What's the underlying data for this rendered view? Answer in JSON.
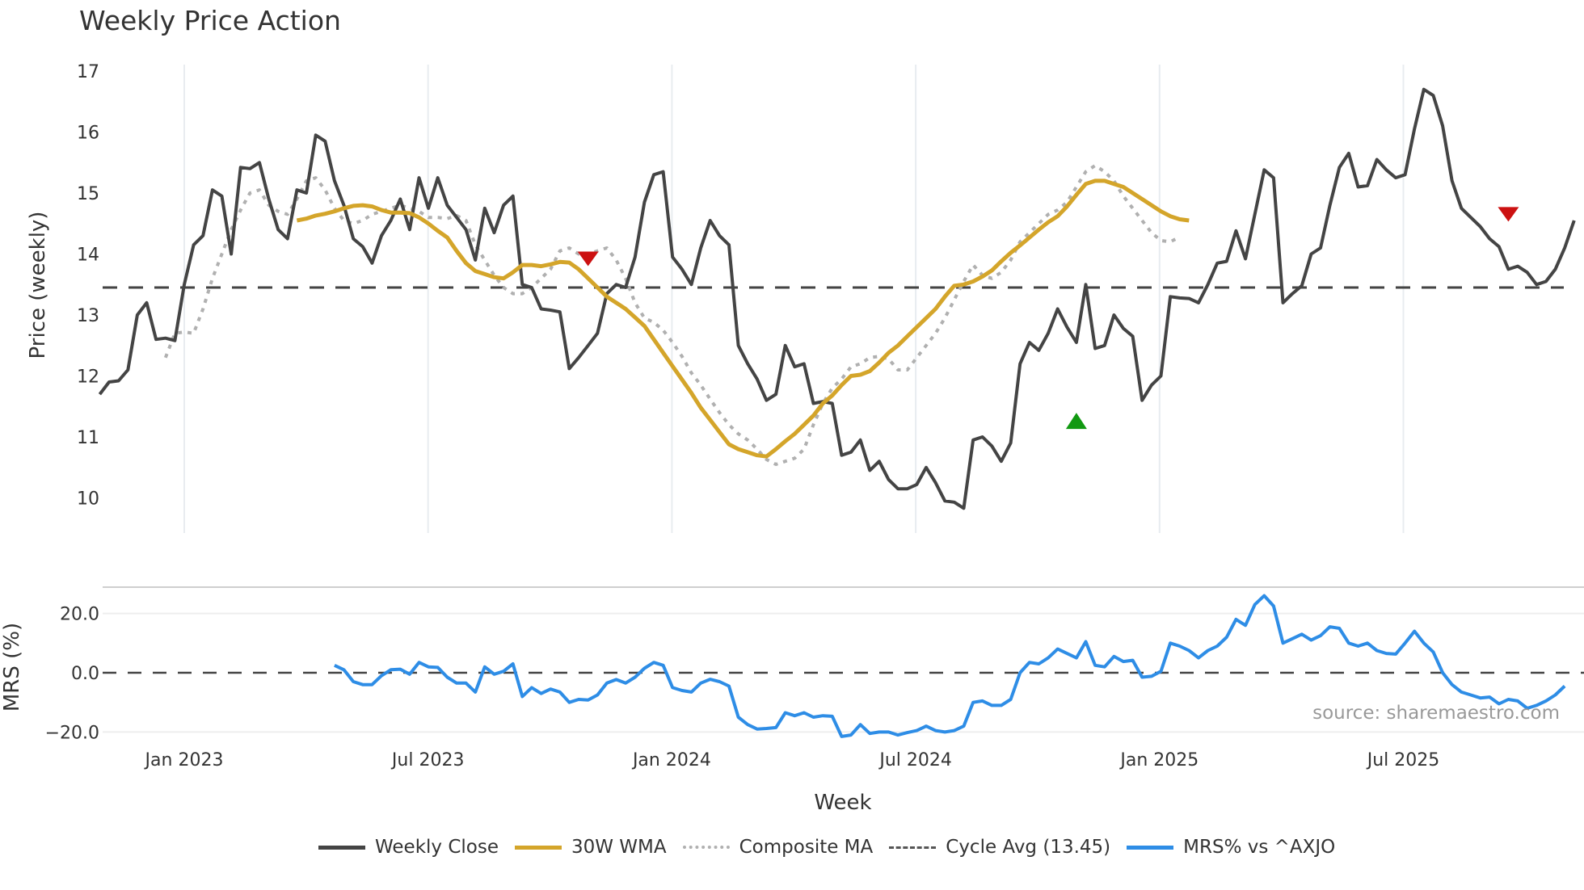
{
  "title": "Weekly Price Action",
  "chart_data": [
    {
      "type": "line",
      "title": "Weekly Price Action",
      "xlabel": "Week",
      "ylabel": "Price (weekly)",
      "ylim": [
        9.5,
        17.2
      ],
      "yticks": [
        10,
        11,
        12,
        13,
        14,
        15,
        16,
        17
      ],
      "xticks": [
        "Jan 2023",
        "Jul 2023",
        "Jan 2024",
        "Jul 2024",
        "Jan 2025",
        "Jul 2025"
      ],
      "grid": "vertical",
      "legend_position": "bottom",
      "cycle_avg": 13.45,
      "series": [
        {
          "name": "Weekly Close",
          "color": "#444444",
          "start_week_offset": -9,
          "values": [
            11.7,
            11.9,
            11.92,
            12.1,
            13.0,
            13.2,
            12.6,
            12.62,
            12.58,
            13.5,
            14.15,
            14.3,
            15.05,
            14.95,
            14.0,
            15.42,
            15.4,
            15.5,
            14.9,
            14.4,
            14.25,
            15.05,
            15.0,
            15.95,
            15.85,
            15.2,
            14.8,
            14.25,
            14.12,
            13.85,
            14.3,
            14.55,
            14.9,
            14.4,
            15.25,
            14.75,
            15.25,
            14.8,
            14.6,
            14.4,
            13.9,
            14.75,
            14.35,
            14.8,
            14.95,
            13.5,
            13.45,
            13.1,
            13.08,
            13.05,
            12.12,
            12.3,
            12.5,
            12.7,
            13.35,
            13.5,
            13.45,
            13.95,
            14.85,
            15.3,
            15.35,
            13.95,
            13.75,
            13.5,
            14.1,
            14.55,
            14.3,
            14.15,
            12.5,
            12.2,
            11.95,
            11.6,
            11.7,
            12.5,
            12.15,
            12.2,
            11.55,
            11.58,
            11.55,
            10.7,
            10.75,
            10.95,
            10.45,
            10.6,
            10.3,
            10.15,
            10.15,
            10.22,
            10.5,
            10.25,
            9.95,
            9.93,
            9.83,
            10.95,
            11.0,
            10.85,
            10.6,
            10.9,
            12.2,
            12.55,
            12.42,
            12.7,
            13.1,
            12.8,
            12.55,
            13.5,
            12.45,
            12.5,
            13.0,
            12.78,
            12.65,
            11.6,
            11.85,
            12.0,
            13.3,
            13.28,
            13.27,
            13.2,
            13.5,
            13.85,
            13.88,
            14.38,
            13.92,
            14.65,
            15.38,
            15.25,
            13.2,
            13.35,
            13.48,
            14.0,
            14.1,
            14.8,
            15.42,
            15.65,
            15.1,
            15.12,
            15.55,
            15.38,
            15.25,
            15.3,
            16.05,
            16.7,
            16.6,
            16.1,
            15.2,
            14.75,
            14.6,
            14.45,
            14.25,
            14.12,
            13.75,
            13.8,
            13.7,
            13.5,
            13.55,
            13.75,
            14.1,
            14.55
          ]
        },
        {
          "name": "30W WMA",
          "color": "#d4a52a",
          "start_week_offset": 12,
          "values": [
            14.55,
            14.58,
            14.63,
            14.66,
            14.7,
            14.75,
            14.79,
            14.8,
            14.78,
            14.72,
            14.68,
            14.68,
            14.67,
            14.6,
            14.5,
            14.38,
            14.27,
            14.05,
            13.85,
            13.72,
            13.67,
            13.62,
            13.6,
            13.7,
            13.82,
            13.82,
            13.8,
            13.83,
            13.87,
            13.86,
            13.75,
            13.6,
            13.45,
            13.3,
            13.2,
            13.1,
            12.96,
            12.82,
            12.6,
            12.38,
            12.16,
            11.94,
            11.72,
            11.48,
            11.28,
            11.08,
            10.88,
            10.8,
            10.75,
            10.7,
            10.68,
            10.8,
            10.93,
            11.05,
            11.2,
            11.35,
            11.55,
            11.68,
            11.85,
            12.0,
            12.02,
            12.08,
            12.22,
            12.38,
            12.5,
            12.65,
            12.8,
            12.95,
            13.1,
            13.3,
            13.48,
            13.5,
            13.55,
            13.63,
            13.73,
            13.88,
            14.02,
            14.14,
            14.27,
            14.4,
            14.52,
            14.62,
            14.78,
            14.97,
            15.15,
            15.2,
            15.2,
            15.15,
            15.1,
            15.0,
            14.9,
            14.8,
            14.7,
            14.62,
            14.57,
            14.55
          ]
        },
        {
          "name": "Composite MA",
          "color": "#b0b0b0",
          "style": "dotted",
          "start_week_offset": -2,
          "values": [
            12.3,
            12.7,
            12.72,
            12.7,
            13.1,
            13.6,
            14.0,
            14.4,
            14.72,
            15.0,
            15.05,
            14.8,
            14.7,
            14.65,
            14.9,
            15.2,
            15.25,
            15.05,
            14.75,
            14.55,
            14.5,
            14.55,
            14.65,
            14.7,
            14.75,
            14.8,
            14.75,
            14.7,
            14.6,
            14.6,
            14.58,
            14.63,
            14.55,
            14.15,
            13.9,
            13.65,
            13.45,
            13.35,
            13.35,
            13.45,
            13.6,
            13.75,
            14.05,
            14.1,
            14.0,
            14.0,
            14.05,
            14.1,
            13.9,
            13.6,
            13.2,
            12.95,
            12.88,
            12.75,
            12.55,
            12.32,
            12.05,
            11.85,
            11.62,
            11.4,
            11.2,
            11.05,
            10.95,
            10.8,
            10.63,
            10.55,
            10.6,
            10.65,
            10.8,
            11.2,
            11.55,
            11.8,
            11.95,
            12.15,
            12.2,
            12.3,
            12.32,
            12.28,
            12.1,
            12.1,
            12.3,
            12.5,
            12.7,
            12.95,
            13.25,
            13.55,
            13.82,
            13.65,
            13.6,
            13.7,
            13.9,
            14.2,
            14.35,
            14.5,
            14.65,
            14.72,
            14.85,
            15.1,
            15.35,
            15.45,
            15.35,
            15.2,
            14.95,
            14.75,
            14.55,
            14.35,
            14.22,
            14.2,
            14.28
          ]
        },
        {
          "name": "Cycle Avg (13.45)",
          "color": "#444444",
          "style": "dashed",
          "constant": 13.45
        }
      ],
      "markers": [
        {
          "type": "sell",
          "shape": "triangle-down",
          "color": "#cc1111",
          "week": 43,
          "price": 13.92
        },
        {
          "type": "buy",
          "shape": "triangle-up",
          "color": "#119911",
          "week": 95,
          "price": 11.25
        },
        {
          "type": "sell",
          "shape": "triangle-down",
          "color": "#cc1111",
          "week": 141,
          "price": 14.65
        }
      ]
    },
    {
      "type": "line",
      "ylabel": "MRS (%)",
      "ylim": [
        -22,
        29
      ],
      "yticks": [
        -20.0,
        0.0,
        20.0
      ],
      "series": [
        {
          "name": "MRS% vs ^AXJO",
          "color": "#2e8de6",
          "start_week_offset": 16,
          "values": [
            2.5,
            1,
            -3,
            -4,
            -4,
            -1,
            1,
            1.2,
            -0.5,
            3.5,
            2,
            1.8,
            -1.5,
            -3.5,
            -3.5,
            -6.5,
            2,
            -0.5,
            0.5,
            3,
            -8,
            -5,
            -7,
            -5.5,
            -6.5,
            -10,
            -9,
            -9.2,
            -7.5,
            -3.5,
            -2.3,
            -3.5,
            -1.5,
            1.5,
            3.5,
            2.5,
            -5,
            -6,
            -6.5,
            -3.5,
            -2.2,
            -3,
            -4.5,
            -15,
            -17.5,
            -19,
            -18.8,
            -18.5,
            -13.5,
            -14.5,
            -13.5,
            -15,
            -14.5,
            -14.7,
            -21.5,
            -21,
            -17.5,
            -20.5,
            -20,
            -20,
            -21,
            -20.2,
            -19.5,
            -18,
            -19.5,
            -20,
            -19.5,
            -18,
            -10,
            -9.5,
            -11,
            -11,
            -9,
            0,
            3.5,
            3,
            5,
            8,
            6.5,
            5,
            10.5,
            2.5,
            2,
            5.5,
            3.8,
            4.2,
            -1.5,
            -1.2,
            0.5,
            10,
            9,
            7.5,
            5,
            7.5,
            9,
            12,
            18,
            16,
            23,
            26,
            22.5,
            10,
            11.5,
            13,
            11,
            12.5,
            15.5,
            15,
            10,
            9,
            10,
            7.5,
            6.5,
            6.3,
            10,
            14,
            10,
            7,
            0,
            -4,
            -6.5,
            -7.5,
            -8.5,
            -8.2,
            -10.5,
            -9,
            -9.5,
            -12,
            -11,
            -9.5,
            -7.5,
            -4.5
          ]
        }
      ],
      "zero_line": 0,
      "annotation": "source: sharemaestro.com"
    }
  ],
  "axes": {
    "price_ylabel": "Price (weekly)",
    "mrs_ylabel": "MRS (%)",
    "xlabel": "Week",
    "xticks": [
      "Jan 2023",
      "Jul 2023",
      "Jan 2024",
      "Jul 2024",
      "Jan 2025",
      "Jul 2025"
    ],
    "price_yticks": [
      "10",
      "11",
      "12",
      "13",
      "14",
      "15",
      "16",
      "17"
    ],
    "mrs_yticks": [
      "20.0",
      "0.0",
      "−20.0"
    ]
  },
  "source": "source: sharemaestro.com",
  "legend": [
    {
      "label": "Weekly Close",
      "color": "#444444",
      "style": "solid"
    },
    {
      "label": "30W WMA",
      "color": "#d4a52a",
      "style": "solid"
    },
    {
      "label": "Composite MA",
      "color": "#b0b0b0",
      "style": "dotted"
    },
    {
      "label": "Cycle Avg (13.45)",
      "color": "#555555",
      "style": "dashed"
    },
    {
      "label": "MRS% vs ^AXJO",
      "color": "#2e8de6",
      "style": "solid"
    }
  ]
}
